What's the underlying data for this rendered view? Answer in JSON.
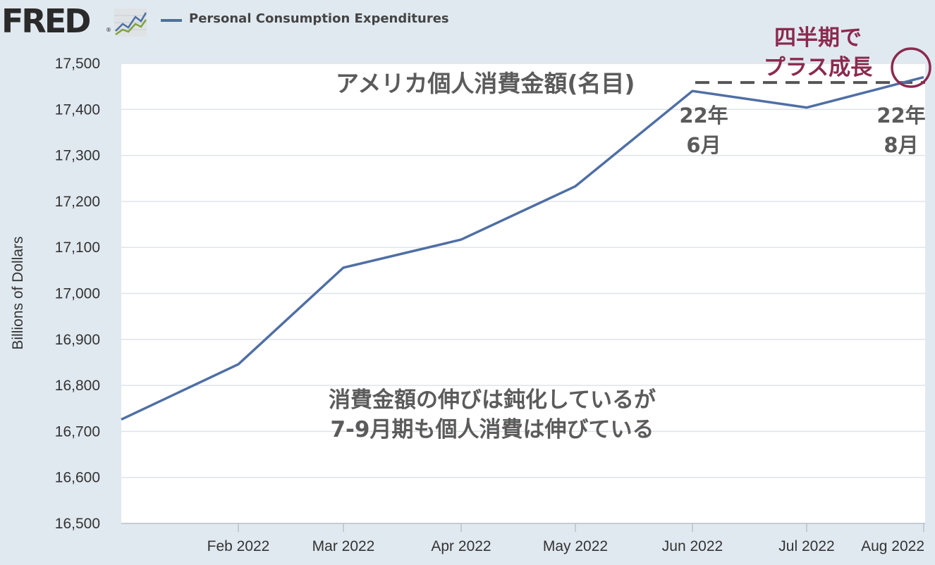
{
  "header": {
    "logo": "FRED",
    "logo_reg": "®",
    "logo_icon": "trend-chart-icon",
    "legend_label": "Personal Consumption Expenditures"
  },
  "colors": {
    "line": "#4f6fa4",
    "plot_bg": "#ffffff",
    "page_bg": "#e1e9f0",
    "grid": "#dfe4ea",
    "annotation_gray": "#5b5b5b",
    "annotation_red": "#8b2a4f"
  },
  "chart_data": {
    "type": "line",
    "title": "",
    "xlabel": "",
    "ylabel": "Billions of Dollars",
    "x_tick_labels": [
      "Feb 2022",
      "Mar 2022",
      "Apr 2022",
      "May 2022",
      "Jun 2022",
      "Jul 2022",
      "Aug 2022"
    ],
    "y_ticks": [
      16500,
      16600,
      16700,
      16800,
      16900,
      17000,
      17100,
      17200,
      17300,
      17400,
      17500
    ],
    "y_tick_labels": [
      "16,500",
      "16,600",
      "16,700",
      "16,800",
      "16,900",
      "17,000",
      "17,100",
      "17,200",
      "17,300",
      "17,400",
      "17,500"
    ],
    "ylim": [
      16500,
      17500
    ],
    "grid": true,
    "series": [
      {
        "name": "Personal Consumption Expenditures",
        "x": [
          "2022-01",
          "2022-02",
          "2022-03",
          "2022-04",
          "2022-05",
          "2022-06",
          "2022-07",
          "2022-08"
        ],
        "values": [
          16726,
          16846,
          17056,
          17117,
          17233,
          17440,
          17404,
          17470
        ]
      }
    ],
    "reference_line": {
      "value": 17440,
      "style": "dashed",
      "from": "2022-06",
      "to": "2022-08"
    },
    "annotations": {
      "title_jp": "アメリカ個人消費金額(名目)",
      "jun_label": [
        "22年",
        "6月"
      ],
      "aug_label": [
        "22年",
        "8月"
      ],
      "growth_label": [
        "四半期で",
        "プラス成長"
      ],
      "note": [
        "消費金額の伸びは鈍化しているが",
        "7-9月期も個人消費は伸びている"
      ]
    }
  }
}
